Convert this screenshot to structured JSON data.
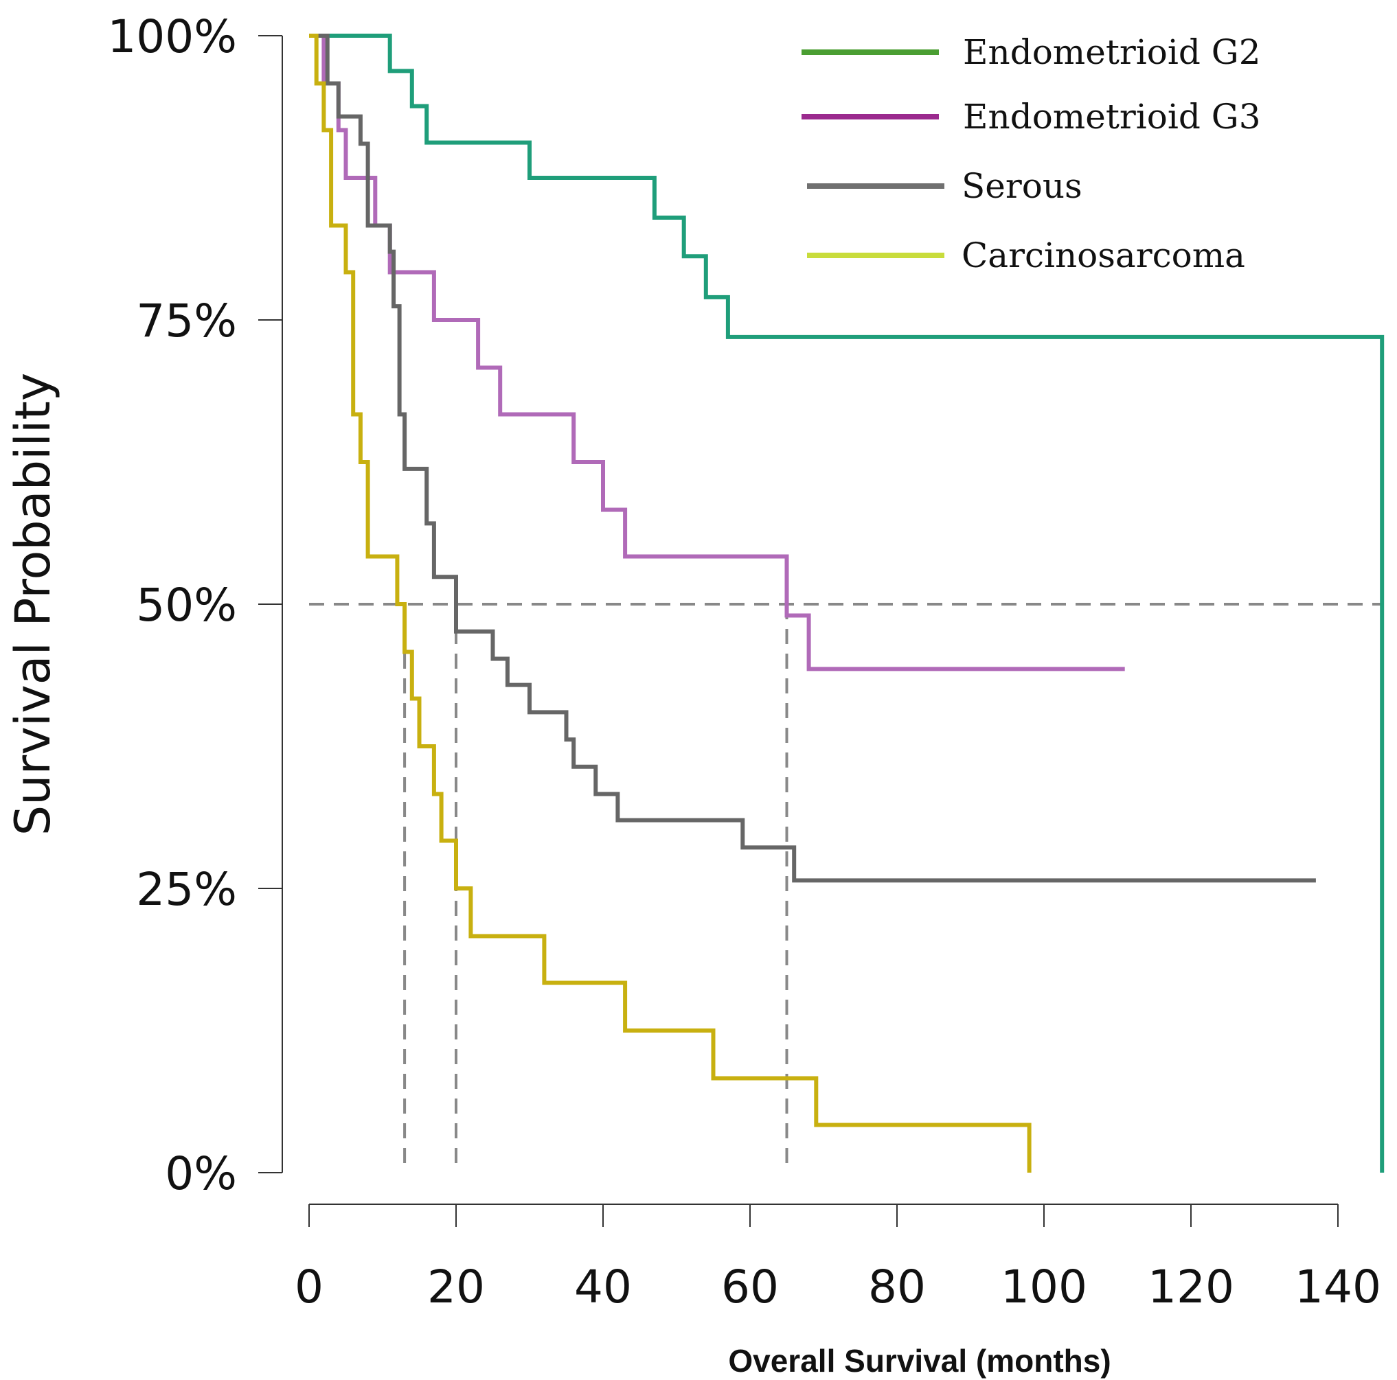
{
  "chart_data": {
    "type": "line",
    "subtype": "kaplan-meier step",
    "xlabel": "Overall Survival (months)",
    "ylabel": "Survival Probability",
    "xlim": [
      0,
      140
    ],
    "ylim": [
      0,
      1
    ],
    "xticks": [
      0,
      20,
      40,
      60,
      80,
      100,
      120,
      140
    ],
    "xtick_labels": [
      "0",
      "20",
      "40",
      "60",
      "80",
      "100",
      "120",
      "140"
    ],
    "yticks": [
      0,
      0.25,
      0.5,
      0.75,
      1
    ],
    "ytick_labels": [
      "0%",
      "25%",
      "50%",
      "75%",
      "100%"
    ],
    "grid": false,
    "legend_position": "top-right",
    "median_line": {
      "y": 0.5,
      "x_end": 146,
      "medians": [
        13,
        20,
        65,
        146
      ]
    },
    "series": [
      {
        "name": "Endometrioid G2",
        "color": "#1f9e7a",
        "legend_color": "#4a9e32",
        "steps": [
          [
            0,
            1.0
          ],
          [
            11,
            0.969
          ],
          [
            14,
            0.938
          ],
          [
            16,
            0.906
          ],
          [
            30,
            0.875
          ],
          [
            47,
            0.84
          ],
          [
            51,
            0.806
          ],
          [
            54,
            0.77
          ],
          [
            57,
            0.735
          ],
          [
            146,
            0.0
          ]
        ],
        "end": 146
      },
      {
        "name": "Endometrioid G3",
        "color": "#b06ab8",
        "legend_color": "#9b2a8e",
        "steps": [
          [
            0,
            1.0
          ],
          [
            2,
            0.958
          ],
          [
            4,
            0.917
          ],
          [
            5,
            0.875
          ],
          [
            9,
            0.833
          ],
          [
            11,
            0.792
          ],
          [
            17,
            0.75
          ],
          [
            23,
            0.708
          ],
          [
            26,
            0.667
          ],
          [
            36,
            0.625
          ],
          [
            40,
            0.583
          ],
          [
            43,
            0.542
          ],
          [
            65,
            0.49
          ],
          [
            68,
            0.443
          ]
        ],
        "end": 111
      },
      {
        "name": "Serous",
        "color": "#666666",
        "legend_color": "#707070",
        "steps": [
          [
            0,
            1.0
          ],
          [
            2.5,
            0.958
          ],
          [
            4,
            0.929
          ],
          [
            7,
            0.905
          ],
          [
            8,
            0.833
          ],
          [
            11,
            0.81
          ],
          [
            11.5,
            0.762
          ],
          [
            12.3,
            0.667
          ],
          [
            13,
            0.619
          ],
          [
            16,
            0.571
          ],
          [
            17,
            0.524
          ],
          [
            20,
            0.476
          ],
          [
            25,
            0.452
          ],
          [
            27,
            0.429
          ],
          [
            30,
            0.405
          ],
          [
            35,
            0.381
          ],
          [
            36,
            0.357
          ],
          [
            39,
            0.333
          ],
          [
            42,
            0.31
          ],
          [
            59,
            0.286
          ],
          [
            66,
            0.257
          ]
        ],
        "end": 137
      },
      {
        "name": "Carcinosarcoma",
        "color": "#c8b010",
        "legend_color": "#c8dc3c",
        "steps": [
          [
            0,
            1.0
          ],
          [
            1,
            0.958
          ],
          [
            2,
            0.917
          ],
          [
            3,
            0.833
          ],
          [
            5,
            0.792
          ],
          [
            6,
            0.667
          ],
          [
            7,
            0.625
          ],
          [
            8,
            0.542
          ],
          [
            12,
            0.5
          ],
          [
            13,
            0.458
          ],
          [
            14,
            0.417
          ],
          [
            15,
            0.375
          ],
          [
            17,
            0.333
          ],
          [
            18,
            0.292
          ],
          [
            20,
            0.25
          ],
          [
            22,
            0.208
          ],
          [
            32,
            0.167
          ],
          [
            43,
            0.125
          ],
          [
            55,
            0.083
          ],
          [
            69,
            0.042
          ],
          [
            98,
            0.0
          ]
        ],
        "end": 98
      }
    ]
  }
}
